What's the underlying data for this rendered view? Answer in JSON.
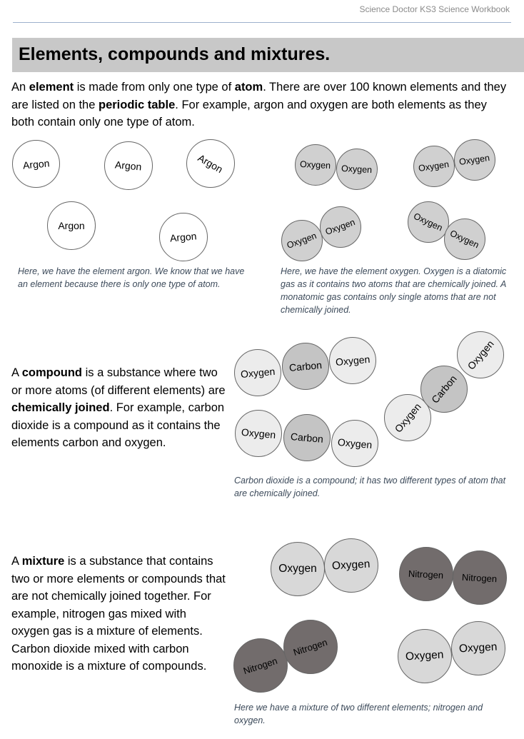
{
  "header": {
    "workbook": "Science Doctor KS3 Science Workbook"
  },
  "title": "Elements, compounds and mixtures.",
  "element_section": {
    "text": [
      " An ",
      "element",
      " is made from only one type of ",
      "atom",
      ". There are over 100 known elements and they are listed on the ",
      "periodic table",
      ". For example, argon and oxygen are both elements as they both contain only one type of atom."
    ],
    "argon_atoms": [
      "Argon",
      "Argon",
      "Argon",
      "Argon",
      "Argon"
    ],
    "argon_caption": "Here, we have the element argon. We know that we have an element because there is only one type of atom.",
    "oxygen_atoms": [
      "Oxygen",
      "Oxygen",
      "Oxygen",
      "Oxygen",
      "Oxygen",
      "Oxygen",
      "Oxygen",
      "Oxygen"
    ],
    "oxygen_caption": "Here, we have the element oxygen. Oxygen is a diatomic gas as it contains two atoms that are chemically joined. A monatomic gas contains only single atoms that are not chemically joined."
  },
  "compound_section": {
    "text": [
      "A ",
      "compound",
      " is a substance where two or more atoms (of different elements) are ",
      "chemically joined",
      ". For example, carbon dioxide is a compound as it contains the elements carbon and oxygen."
    ],
    "atoms": [
      "Oxygen",
      "Carbon",
      "Oxygen",
      "Oxygen",
      "Carbon",
      "Oxygen",
      "Oxygen",
      "Carbon",
      "Oxygen"
    ],
    "caption": "Carbon dioxide is a compound; it has two different types of atom that are chemically joined."
  },
  "mixture_section": {
    "text": [
      "A ",
      "mixture",
      " is a substance that contains two or more elements or compounds that are not chemically joined together. For example, nitrogen gas mixed with oxygen gas is a mixture of elements. Carbon dioxide mixed with carbon monoxide is a mixture of compounds."
    ],
    "atoms": [
      "Oxygen",
      "Oxygen",
      "Nitrogen",
      "Nitrogen",
      "Nitrogen",
      "Nitrogen",
      "Oxygen",
      "Oxygen"
    ],
    "caption": "Here we have a mixture of two different elements; nitrogen and oxygen."
  },
  "colors": {
    "title_bar": "#c8c8c8",
    "nitrogen": "#726c6c",
    "oxygen": "#d8d8d8",
    "carbon": "#c4c4c4",
    "caption": "#3c4a5a"
  }
}
